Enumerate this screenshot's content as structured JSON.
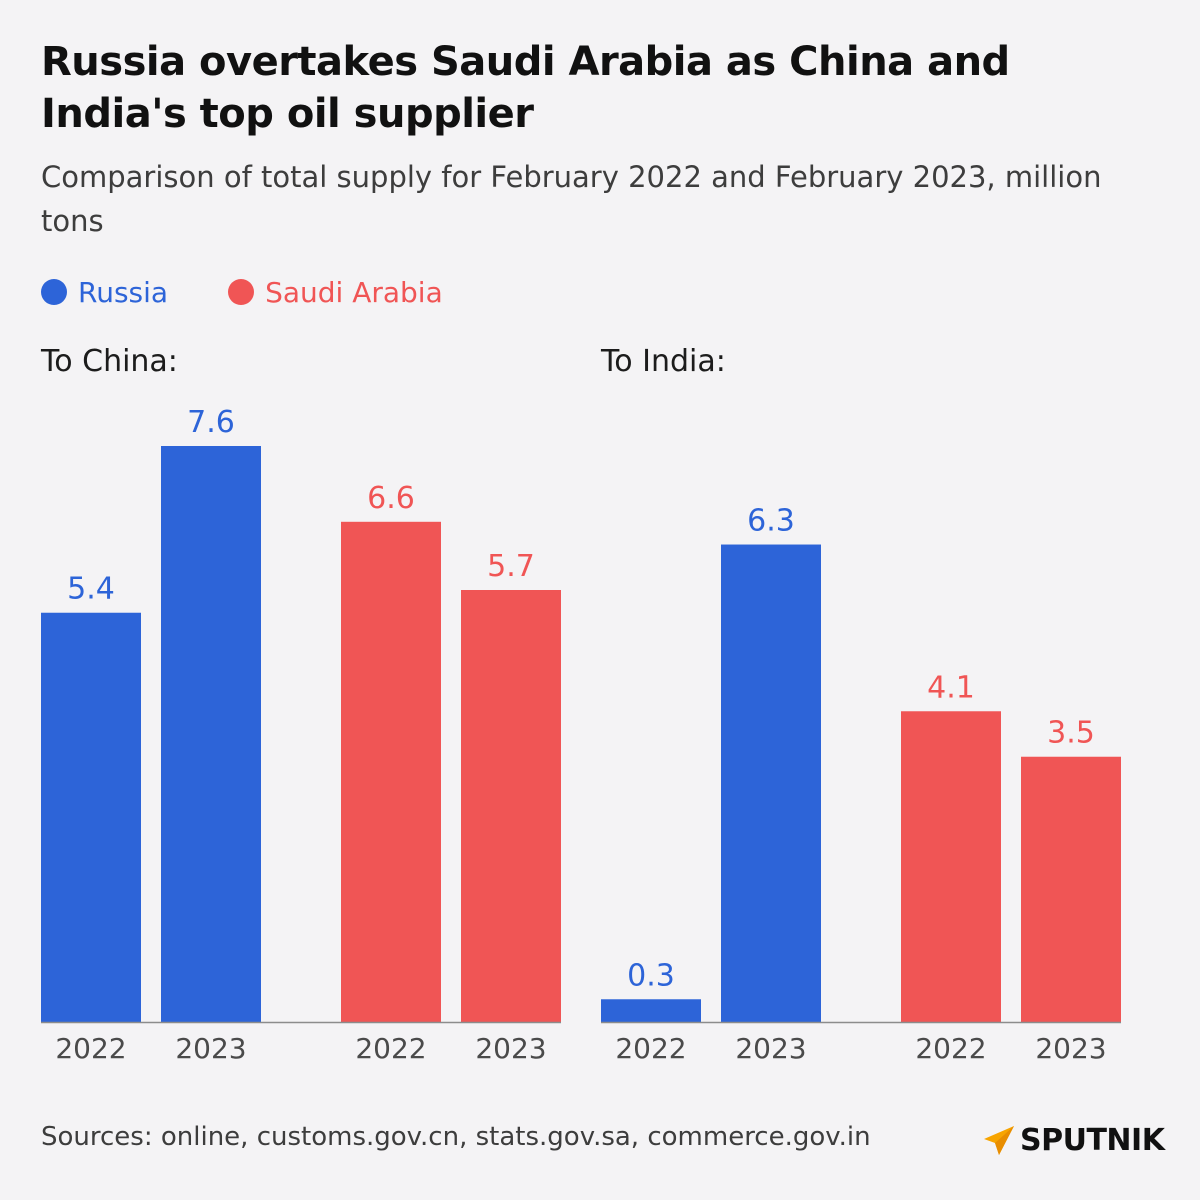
{
  "header": {
    "title": "Russia overtakes Saudi Arabia as China and India's top oil supplier",
    "subtitle": "Comparison of total supply for February 2022 and February 2023, million tons"
  },
  "legend": [
    {
      "label": "Russia",
      "color": "#2d64d8"
    },
    {
      "label": "Saudi Arabia",
      "color": "#f05555"
    }
  ],
  "chart_data": [
    {
      "type": "bar",
      "title": "To China:",
      "categories": [
        "2022",
        "2023"
      ],
      "series": [
        {
          "name": "Russia",
          "color": "#2d64d8",
          "values": [
            5.4,
            7.6
          ]
        },
        {
          "name": "Saudi Arabia",
          "color": "#f05555",
          "values": [
            6.6,
            5.7
          ]
        }
      ],
      "ylim": [
        0,
        7.6
      ],
      "grid": false,
      "legend": "top-left"
    },
    {
      "type": "bar",
      "title": "To India:",
      "categories": [
        "2022",
        "2023"
      ],
      "series": [
        {
          "name": "Russia",
          "color": "#2d64d8",
          "values": [
            0.3,
            6.3
          ]
        },
        {
          "name": "Saudi Arabia",
          "color": "#f05555",
          "values": [
            4.1,
            3.5
          ]
        }
      ],
      "ylim": [
        0,
        7.6
      ],
      "grid": false,
      "legend": "top-left"
    }
  ],
  "footer": {
    "sources": "Sources: online, customs.gov.cn, stats.gov.sa, commerce.gov.in",
    "brand": "SPUTNIK"
  }
}
